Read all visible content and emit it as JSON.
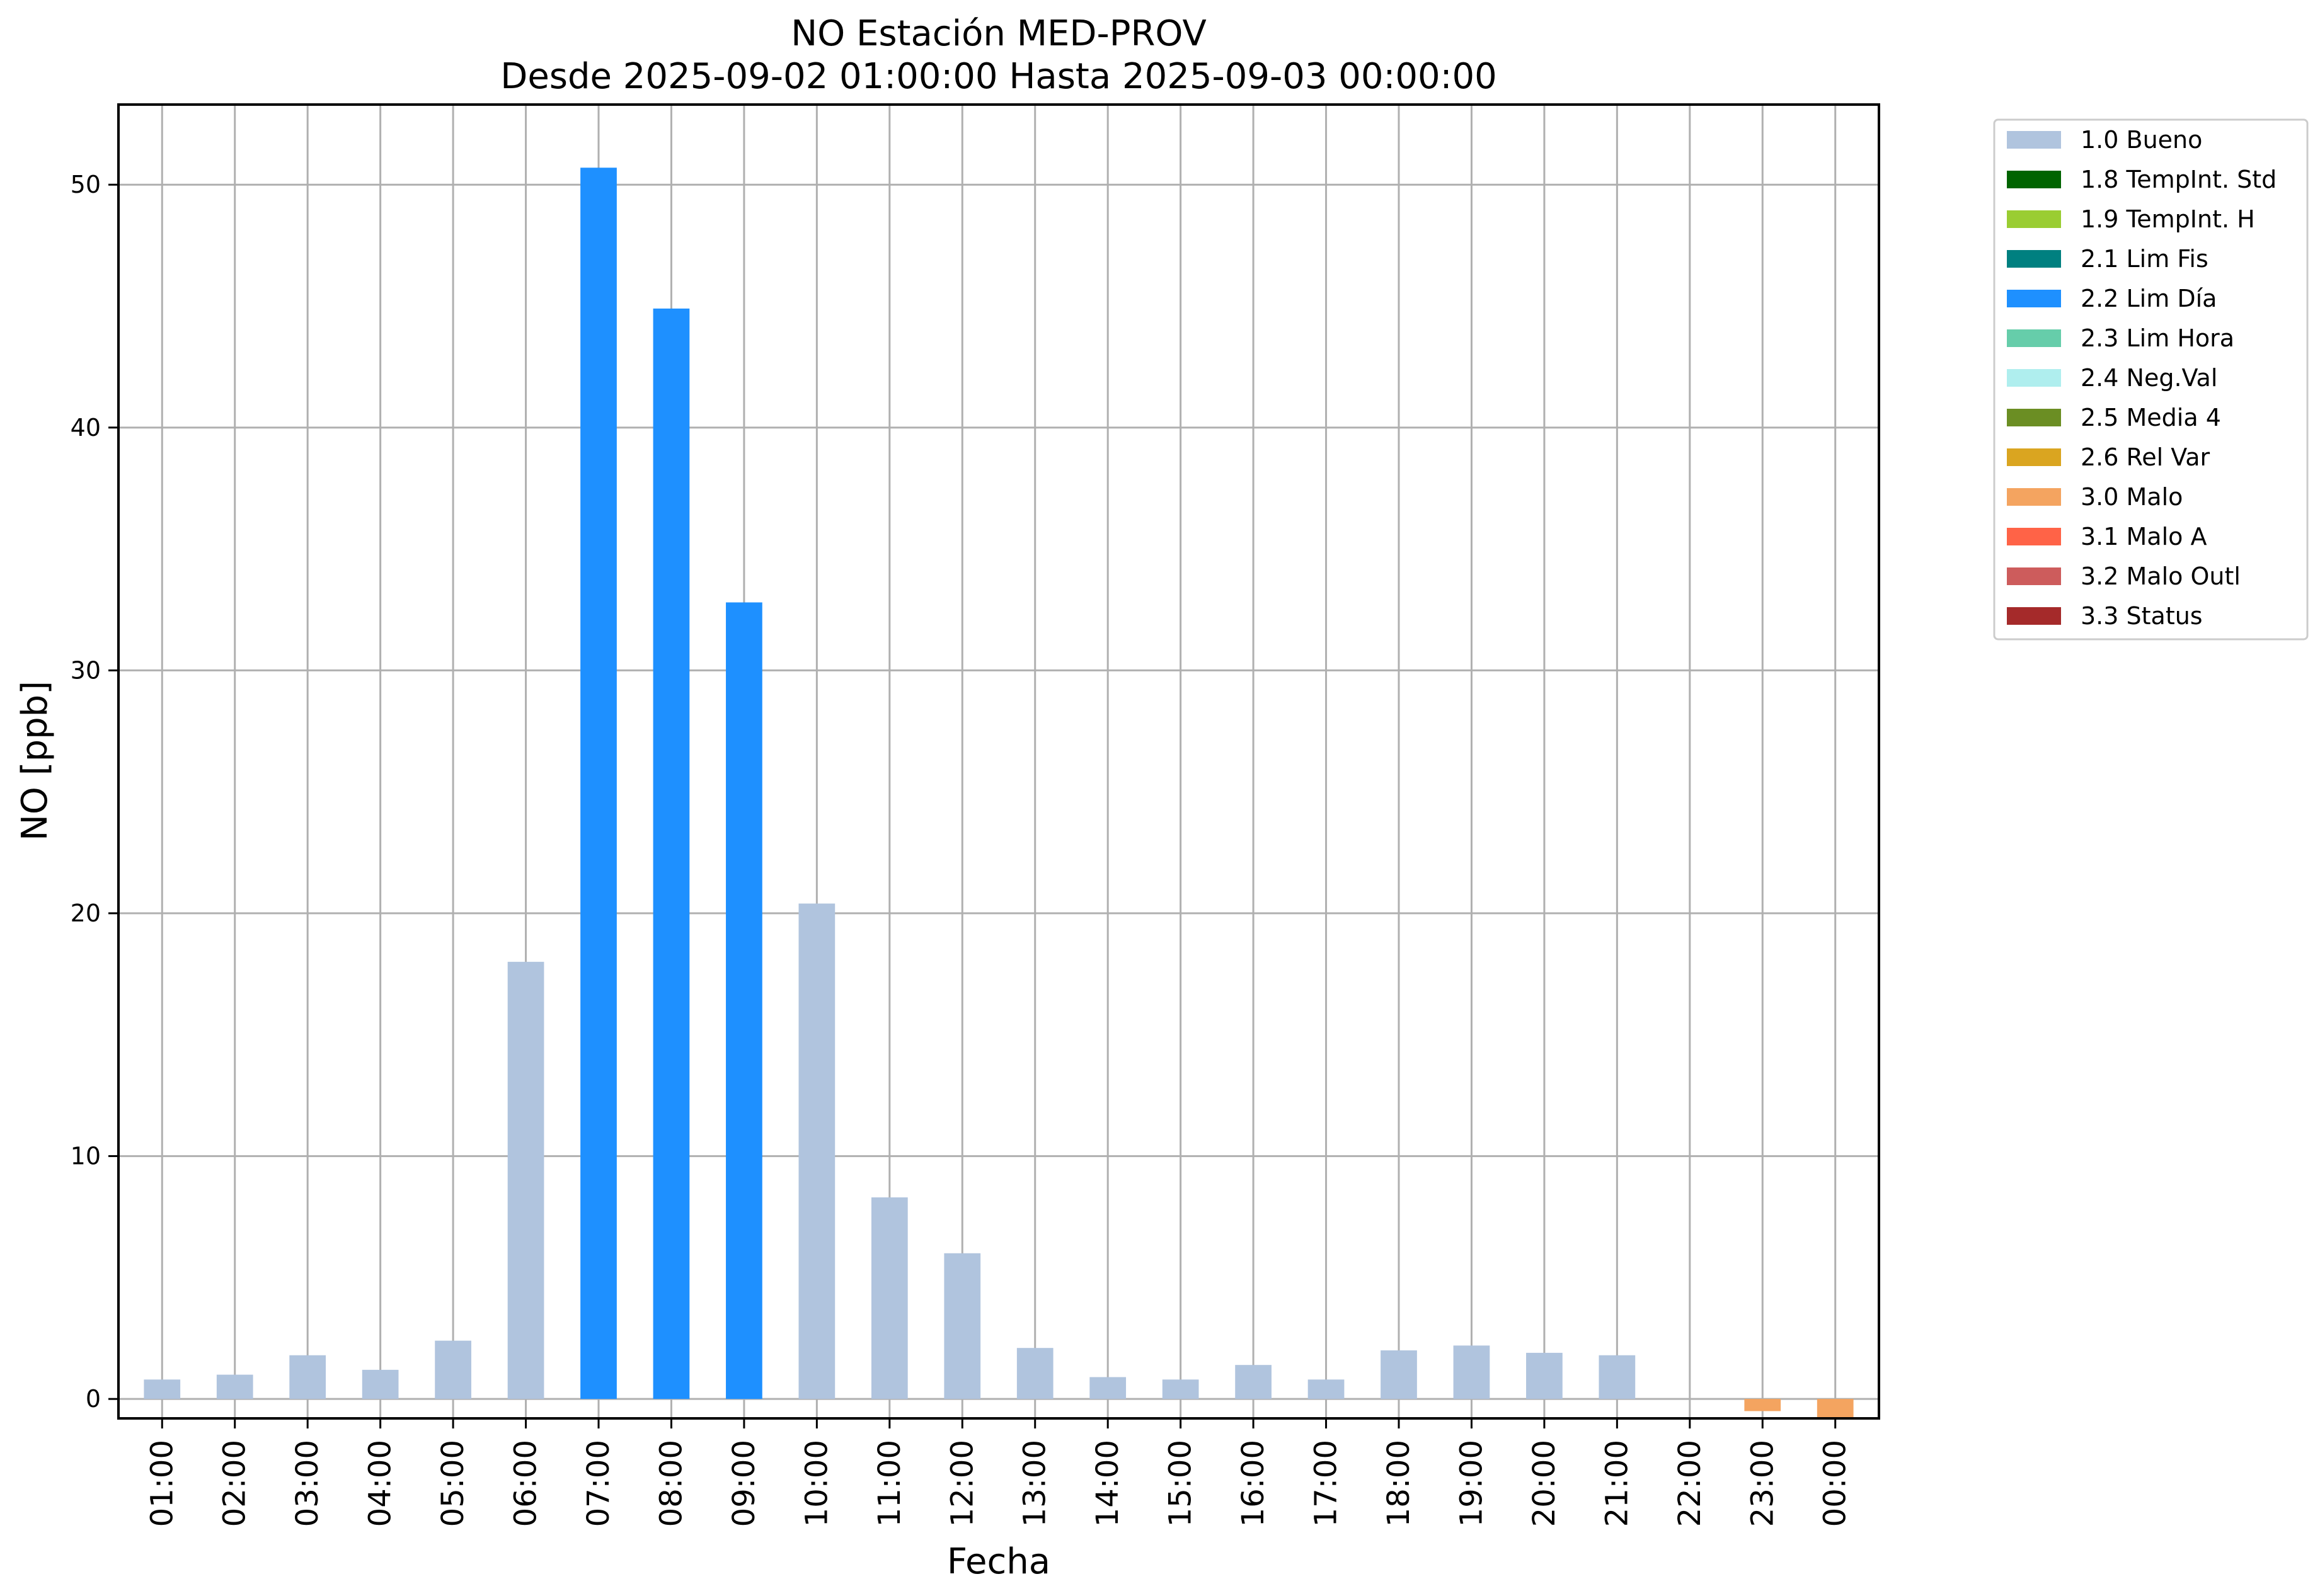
{
  "chart_data": {
    "type": "bar",
    "title": "NO Estación MED-PROV",
    "subtitle": "Desde 2025-09-02 01:00:00 Hasta 2025-09-03 00:00:00",
    "xlabel": "Fecha",
    "ylabel": "NO [ppb]",
    "ylim": [
      -0.8,
      53.3
    ],
    "yticks": [
      0,
      10,
      20,
      30,
      40,
      50
    ],
    "grid": true,
    "legend_position": "outside-top-right",
    "categories": [
      "01:00",
      "02:00",
      "03:00",
      "04:00",
      "05:00",
      "06:00",
      "07:00",
      "08:00",
      "09:00",
      "10:00",
      "11:00",
      "12:00",
      "13:00",
      "14:00",
      "15:00",
      "16:00",
      "17:00",
      "18:00",
      "19:00",
      "20:00",
      "21:00",
      "22:00",
      "23:00",
      "00:00"
    ],
    "values": [
      0.8,
      1.0,
      1.8,
      1.2,
      2.4,
      18.0,
      50.7,
      44.9,
      32.8,
      20.4,
      8.3,
      6.0,
      2.1,
      0.9,
      0.8,
      1.4,
      0.8,
      2.0,
      2.2,
      1.9,
      1.8,
      0,
      -0.5,
      -0.8
    ],
    "flags": [
      "1.0 Bueno",
      "1.0 Bueno",
      "1.0 Bueno",
      "1.0 Bueno",
      "1.0 Bueno",
      "1.0 Bueno",
      "2.2 Lim Día",
      "2.2 Lim Día",
      "2.2 Lim Día",
      "1.0 Bueno",
      "1.0 Bueno",
      "1.0 Bueno",
      "1.0 Bueno",
      "1.0 Bueno",
      "1.0 Bueno",
      "1.0 Bueno",
      "1.0 Bueno",
      "1.0 Bueno",
      "1.0 Bueno",
      "1.0 Bueno",
      "1.0 Bueno",
      "1.0 Bueno",
      "3.0 Malo",
      "3.0 Malo"
    ],
    "legend": [
      {
        "label": "1.0 Bueno",
        "color": "#b0c4de"
      },
      {
        "label": "1.8 TempInt. Std",
        "color": "#006400"
      },
      {
        "label": "1.9 TempInt. H",
        "color": "#9acd32"
      },
      {
        "label": "2.1 Lim Fis",
        "color": "#008080"
      },
      {
        "label": "2.2 Lim Día",
        "color": "#1e90ff"
      },
      {
        "label": "2.3 Lim Hora",
        "color": "#66cdaa"
      },
      {
        "label": "2.4 Neg.Val",
        "color": "#afeeee"
      },
      {
        "label": "2.5 Media 4",
        "color": "#6b8e23"
      },
      {
        "label": "2.6 Rel Var",
        "color": "#daa520"
      },
      {
        "label": "3.0 Malo",
        "color": "#f4a460"
      },
      {
        "label": "3.1 Malo A",
        "color": "#ff6347"
      },
      {
        "label": "3.2 Malo Outl",
        "color": "#cd5c5c"
      },
      {
        "label": "3.3 Status",
        "color": "#a52a2a"
      }
    ]
  }
}
